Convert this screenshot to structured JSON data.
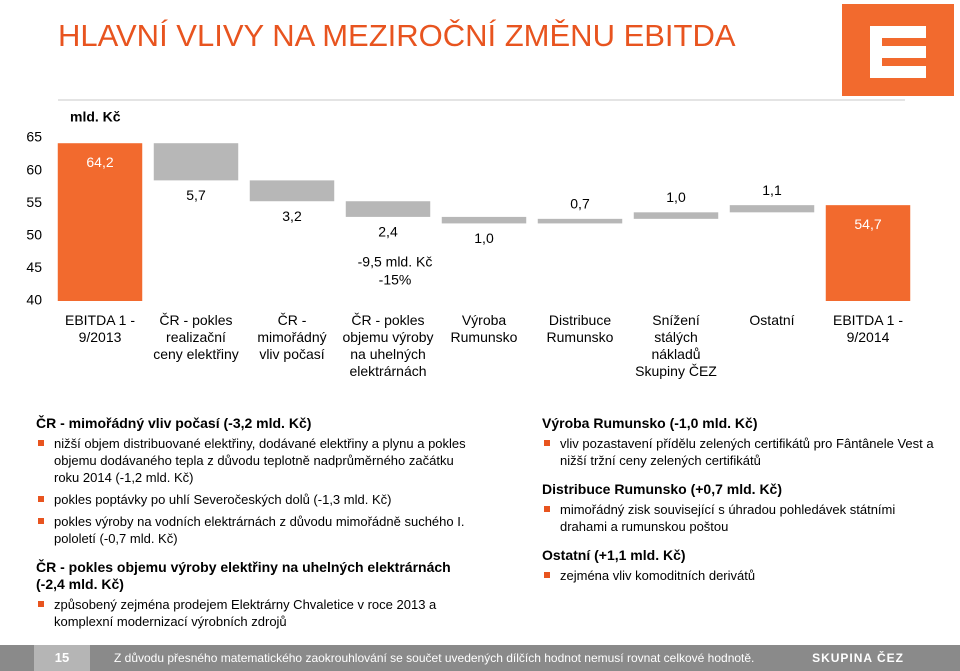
{
  "title": "HLAVNÍ VLIVY NA MEZIROČNÍ ZMĚNU EBITDA",
  "chart_data": {
    "type": "waterfall",
    "y_label": "mld. Kč",
    "categories": [
      "EBITDA 1 - 9/2013",
      "ČR - pokles realizační ceny elektřiny",
      "ČR - mimořádný vliv počasí",
      "ČR - pokles objemu výroby na uhelných elektrárnách",
      "Výroba Rumunsko",
      "Distribuce Rumunsko",
      "Snížení stálých nákladů Skupiny ČEZ",
      "Ostatní",
      "EBITDA 1 - 9/2014"
    ],
    "values": [
      64.2,
      -5.7,
      -3.2,
      -2.4,
      -1.0,
      0.7,
      1.0,
      1.1,
      54.7
    ],
    "value_labels": [
      "64,2",
      "5,7",
      "3,2",
      "2,4",
      "1,0",
      "0,7",
      "1,0",
      "1,1",
      "54,7"
    ],
    "bar_kinds": [
      "total",
      "change",
      "change",
      "change",
      "change",
      "change",
      "change",
      "change",
      "total"
    ],
    "total_color": "#f26a2e",
    "change_color": "#b7b7b7",
    "annotations": [
      "-9,5 mld. Kč",
      "-15%"
    ],
    "ylim": [
      40,
      65
    ],
    "yticks": [
      40,
      45,
      50,
      55,
      60,
      65
    ],
    "grid": false
  },
  "notes": {
    "left": [
      {
        "heading": "ČR - mimořádný vliv počasí (-3,2 mld. Kč)",
        "bullets": [
          "nižší objem distribuované elektřiny, dodávané elektřiny a plynu a pokles objemu dodávaného tepla z důvodu teplotně nadprůměrného začátku roku 2014 (-1,2 mld. Kč)",
          "pokles poptávky po uhlí Severočeských dolů (-1,3 mld. Kč)",
          "pokles výroby na vodních elektrárnách z důvodu mimořádně suchého I. pololetí (-0,7 mld. Kč)"
        ]
      },
      {
        "heading": "ČR - pokles objemu výroby elektřiny na uhelných elektrárnách (-2,4 mld. Kč)",
        "bullets": [
          "způsobený zejména prodejem Elektrárny Chvaletice v roce 2013 a komplexní modernizací výrobních zdrojů"
        ]
      }
    ],
    "right": [
      {
        "heading": "Výroba Rumunsko (-1,0 mld. Kč)",
        "bullets": [
          "vliv pozastavení přídělu zelených certifikátů pro Fântânele Vest a nižší tržní ceny zelených certifikátů"
        ]
      },
      {
        "heading": "Distribuce Rumunsko (+0,7 mld. Kč)",
        "bullets": [
          "mimořádný zisk související s úhradou pohledávek státními drahami a rumunskou poštou"
        ]
      },
      {
        "heading": "Ostatní (+1,1 mld. Kč)",
        "bullets": [
          "zejména vliv komoditních derivátů"
        ]
      }
    ]
  },
  "footer": {
    "page": "15",
    "note": "Z důvodu přesného matematického zaokrouhlování se součet uvedených dílčích hodnot nemusí rovnat celkové hodnotě.",
    "brand": "SKUPINA ČEZ"
  }
}
